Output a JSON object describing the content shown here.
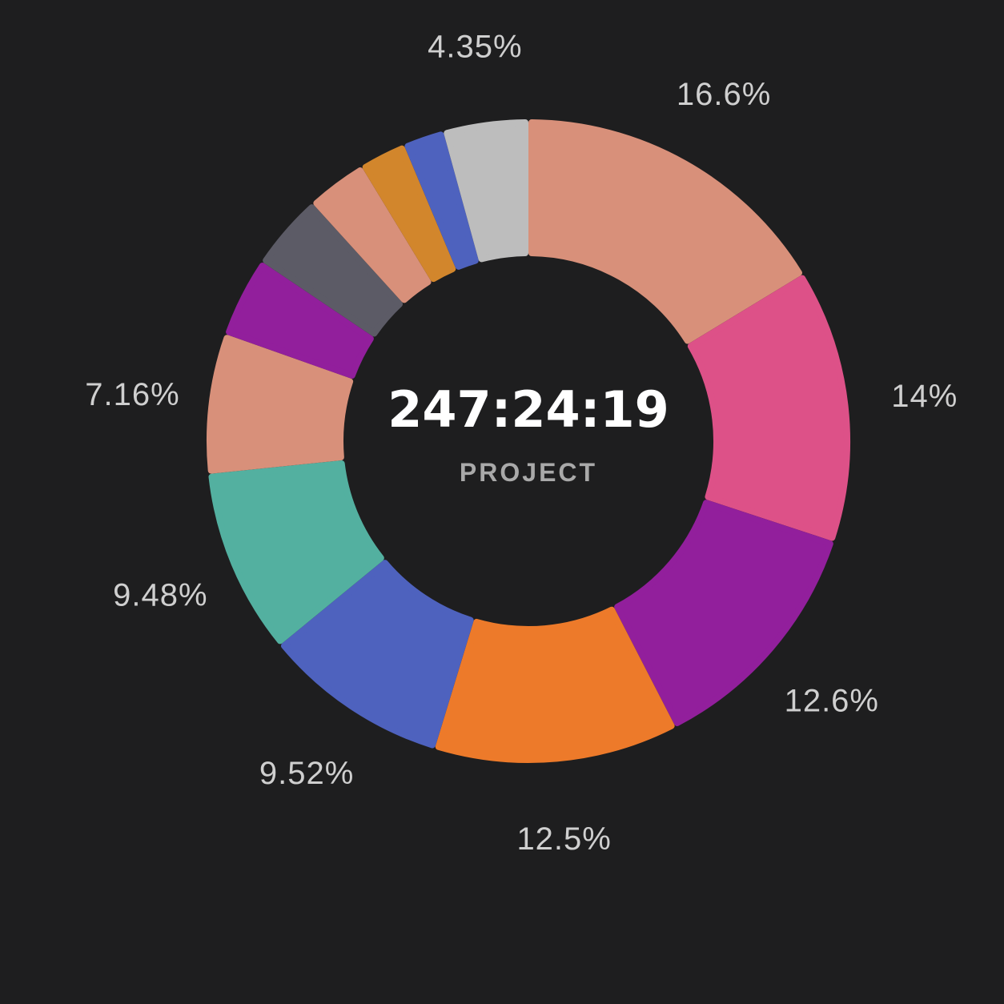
{
  "chart_data": {
    "type": "pie",
    "donut": true,
    "center": {
      "value": "247:24:19",
      "label": "PROJECT"
    },
    "slices": [
      {
        "value": 16.6,
        "label": "16.6%",
        "color": "#d8907a"
      },
      {
        "value": 14.0,
        "label": "14%",
        "color": "#dd5188"
      },
      {
        "value": 12.6,
        "label": "12.6%",
        "color": "#921f9c"
      },
      {
        "value": 12.5,
        "label": "12.5%",
        "color": "#ed7a2a"
      },
      {
        "value": 9.52,
        "label": "9.52%",
        "color": "#4e62be"
      },
      {
        "value": 9.48,
        "label": "9.48%",
        "color": "#53b0a0"
      },
      {
        "value": 7.16,
        "label": "7.16%",
        "color": "#d8907a"
      },
      {
        "value": 4.1,
        "label": "",
        "color": "#921f9c"
      },
      {
        "value": 3.9,
        "label": "",
        "color": "#5c5b66"
      },
      {
        "value": 3.1,
        "label": "",
        "color": "#d8907a"
      },
      {
        "value": 2.4,
        "label": "",
        "color": "#d2862c"
      },
      {
        "value": 2.1,
        "label": "",
        "color": "#4e62be"
      },
      {
        "value": 4.35,
        "label": "4.35%",
        "color": "#bdbdbd"
      }
    ]
  }
}
